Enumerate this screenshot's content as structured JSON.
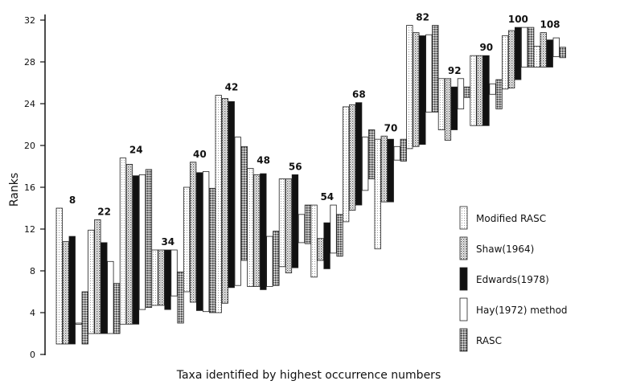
{
  "chart_data": {
    "type": "range-bar",
    "xlabel": "Taxa identified by highest occurrence numbers",
    "ylabel": "Ranks",
    "ylim": [
      0,
      32
    ],
    "yticks": [
      0,
      4,
      8,
      12,
      16,
      20,
      24,
      28,
      32
    ],
    "grid": false,
    "legend_position": "right",
    "series": [
      {
        "name": "Modified RASC",
        "pattern": "fine-dots"
      },
      {
        "name": "Shaw(1964)",
        "pattern": "dots"
      },
      {
        "name": "Edwards(1978)",
        "pattern": "solid-black"
      },
      {
        "name": "Hay(1972) method",
        "pattern": "white"
      },
      {
        "name": "RASC",
        "pattern": "crosshatch"
      }
    ],
    "groups": [
      {
        "label": "8",
        "ranges": [
          [
            1,
            14
          ],
          [
            1,
            10.8
          ],
          [
            1,
            11.3
          ],
          [
            3,
            3
          ],
          [
            1,
            6
          ]
        ]
      },
      {
        "label": "22",
        "ranges": [
          [
            2,
            11.9
          ],
          [
            2,
            12.9
          ],
          [
            2,
            10.7
          ],
          [
            2,
            8.9
          ],
          [
            2,
            6.8
          ]
        ]
      },
      {
        "label": "24",
        "ranges": [
          [
            2.9,
            18.8
          ],
          [
            2.9,
            18.2
          ],
          [
            2.9,
            17.1
          ],
          [
            4.3,
            17.2
          ],
          [
            4.5,
            17.7
          ]
        ]
      },
      {
        "label": "34",
        "ranges": [
          [
            4.7,
            10
          ],
          [
            4.7,
            10
          ],
          [
            4.3,
            10
          ],
          [
            5.6,
            10
          ],
          [
            3,
            7.9
          ]
        ]
      },
      {
        "label": "40",
        "ranges": [
          [
            6,
            16
          ],
          [
            5,
            18.4
          ],
          [
            4.2,
            17.4
          ],
          [
            4.1,
            17.5
          ],
          [
            4,
            15.9
          ]
        ]
      },
      {
        "label": "42",
        "ranges": [
          [
            4,
            24.8
          ],
          [
            4.9,
            24.5
          ],
          [
            6.4,
            24.2
          ],
          [
            6.6,
            20.8
          ],
          [
            9,
            19.9
          ]
        ]
      },
      {
        "label": "48",
        "ranges": [
          [
            6.5,
            17.8
          ],
          [
            6.5,
            17.2
          ],
          [
            6.2,
            17.3
          ],
          [
            6.5,
            11.3
          ],
          [
            6.6,
            11.8
          ]
        ]
      },
      {
        "label": "56",
        "ranges": [
          [
            8.4,
            16.8
          ],
          [
            7.8,
            16.8
          ],
          [
            8.3,
            17.2
          ],
          [
            10.7,
            13.4
          ],
          [
            10.6,
            14.3
          ]
        ]
      },
      {
        "label": "54",
        "ranges": [
          [
            7.4,
            14.3
          ],
          [
            9,
            11.1
          ],
          [
            8.2,
            12.6
          ],
          [
            9.7,
            14.3
          ],
          [
            9.4,
            13.4
          ]
        ]
      },
      {
        "label": "68",
        "ranges": [
          [
            12.7,
            23.7
          ],
          [
            13.8,
            23.9
          ],
          [
            14.3,
            24.1
          ],
          [
            15.7,
            20.8
          ],
          [
            16.8,
            21.5
          ]
        ]
      },
      {
        "label": "70",
        "ranges": [
          [
            10.1,
            20.6
          ],
          [
            14.6,
            20.9
          ],
          [
            14.6,
            20.6
          ],
          [
            18.6,
            19.9
          ],
          [
            18.5,
            20.6
          ]
        ]
      },
      {
        "label": "82",
        "ranges": [
          [
            19.7,
            31.5
          ],
          [
            19.9,
            30.8
          ],
          [
            20.1,
            30.5
          ],
          [
            23.2,
            30.6
          ],
          [
            23.2,
            31.5
          ]
        ]
      },
      {
        "label": "92",
        "ranges": [
          [
            21.5,
            26.4
          ],
          [
            20.5,
            26.4
          ],
          [
            21.5,
            25.6
          ],
          [
            23.5,
            26.4
          ],
          [
            24.6,
            25.6
          ]
        ]
      },
      {
        "label": "90",
        "ranges": [
          [
            21.9,
            28.6
          ],
          [
            21.9,
            28.6
          ],
          [
            21.9,
            28.6
          ],
          [
            24.9,
            25.9
          ],
          [
            23.5,
            26.3
          ]
        ]
      },
      {
        "label": "100",
        "ranges": [
          [
            25.4,
            30.5
          ],
          [
            25.5,
            31
          ],
          [
            26.3,
            31.3
          ],
          [
            27.5,
            31.3
          ],
          [
            27.5,
            31.3
          ]
        ]
      },
      {
        "label": "108",
        "ranges": [
          [
            27.5,
            29.5
          ],
          [
            27.5,
            30.8
          ],
          [
            27.5,
            30.1
          ],
          [
            28.5,
            30.3
          ],
          [
            28.4,
            29.4
          ]
        ]
      }
    ]
  }
}
